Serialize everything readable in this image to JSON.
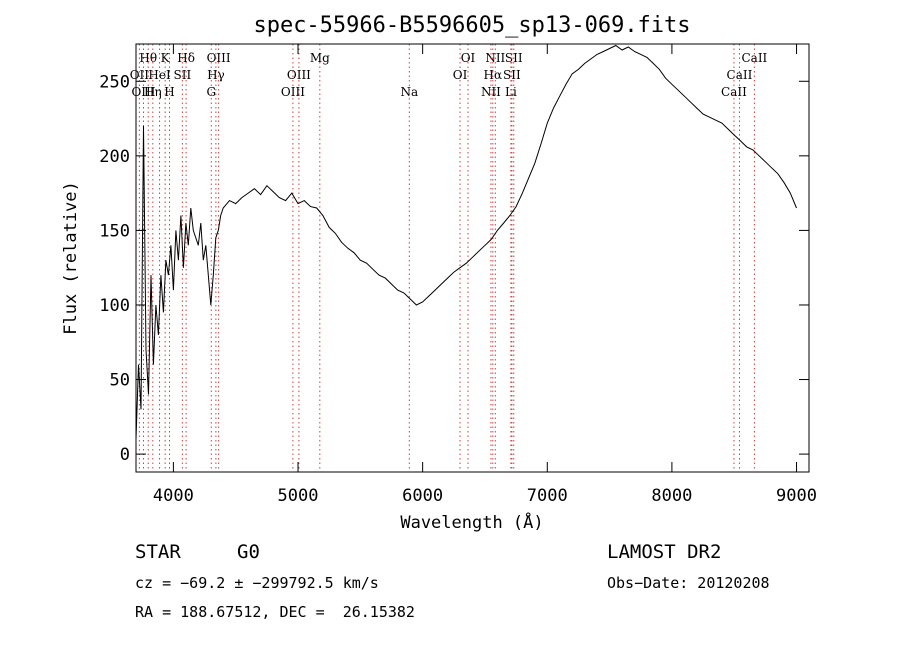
{
  "chart_data": {
    "type": "line",
    "title": "spec-55966-B5596605_sp13-069.fits",
    "xlabel": "Wavelength (Å)",
    "ylabel": "Flux (relative)",
    "xlim": [
      3700,
      9100
    ],
    "ylim": [
      -12,
      275
    ],
    "xticks": [
      4000,
      5000,
      6000,
      7000,
      8000,
      9000
    ],
    "yticks": [
      0,
      50,
      100,
      150,
      200,
      250
    ],
    "grid": false,
    "series": [
      {
        "x": [
          3700,
          3720,
          3740,
          3760,
          3780,
          3800,
          3820,
          3840,
          3860,
          3880,
          3900,
          3920,
          3940,
          3960,
          3980,
          4000,
          4020,
          4040,
          4060,
          4080,
          4100,
          4120,
          4140,
          4160,
          4180,
          4200,
          4220,
          4240,
          4260,
          4280,
          4300,
          4320,
          4340,
          4360,
          4380,
          4400,
          4450,
          4500,
          4550,
          4600,
          4650,
          4700,
          4750,
          4800,
          4850,
          4900,
          4950,
          5000,
          5050,
          5100,
          5150,
          5200,
          5250,
          5300,
          5350,
          5400,
          5450,
          5500,
          5550,
          5600,
          5650,
          5700,
          5750,
          5800,
          5850,
          5900,
          5950,
          6000,
          6050,
          6100,
          6150,
          6200,
          6250,
          6300,
          6350,
          6400,
          6450,
          6500,
          6550,
          6600,
          6650,
          6700,
          6750,
          6800,
          6850,
          6900,
          6950,
          7000,
          7050,
          7100,
          7150,
          7200,
          7250,
          7300,
          7350,
          7400,
          7450,
          7500,
          7550,
          7600,
          7650,
          7700,
          7750,
          7800,
          7850,
          7900,
          7950,
          8000,
          8050,
          8100,
          8150,
          8200,
          8250,
          8300,
          8350,
          8400,
          8450,
          8500,
          8550,
          8600,
          8650,
          8700,
          8750,
          8800,
          8850,
          8900,
          8950,
          9000
        ],
        "values": [
          10,
          60,
          30,
          220,
          70,
          40,
          120,
          60,
          100,
          80,
          120,
          95,
          130,
          120,
          140,
          110,
          150,
          130,
          160,
          125,
          155,
          140,
          165,
          150,
          145,
          140,
          155,
          130,
          140,
          120,
          100,
          120,
          145,
          150,
          160,
          165,
          170,
          168,
          172,
          175,
          178,
          174,
          180,
          176,
          172,
          170,
          175,
          168,
          170,
          166,
          165,
          160,
          152,
          148,
          142,
          138,
          135,
          130,
          128,
          124,
          120,
          118,
          114,
          110,
          108,
          104,
          100,
          102,
          106,
          110,
          114,
          118,
          122,
          125,
          128,
          132,
          136,
          140,
          144,
          150,
          155,
          160,
          166,
          175,
          185,
          195,
          208,
          222,
          232,
          240,
          248,
          255,
          258,
          262,
          265,
          268,
          270,
          272,
          274,
          271,
          273,
          270,
          268,
          266,
          262,
          258,
          252,
          248,
          244,
          240,
          236,
          232,
          228,
          226,
          224,
          222,
          218,
          214,
          210,
          206,
          204,
          200,
          196,
          192,
          188,
          182,
          175,
          165
        ]
      }
    ],
    "line_markers": [
      {
        "label": "Hθ",
        "x": 3798,
        "row": 1
      },
      {
        "label": "OII",
        "x": 3727,
        "row": 2
      },
      {
        "label": "OIII",
        "x": 3760,
        "row": 3
      },
      {
        "label": "K",
        "x": 3934,
        "row": 1
      },
      {
        "label": "HeI",
        "x": 3889,
        "row": 2
      },
      {
        "label": "Hη",
        "x": 3835,
        "row": 3
      },
      {
        "label": "Hδ",
        "x": 4102,
        "row": 1
      },
      {
        "label": "SII",
        "x": 4072,
        "row": 2
      },
      {
        "label": "H",
        "x": 3969,
        "row": 3
      },
      {
        "label": "OIII",
        "x": 4363,
        "row": 1
      },
      {
        "label": "Hγ",
        "x": 4341,
        "row": 2
      },
      {
        "label": "G",
        "x": 4304,
        "row": 3
      },
      {
        "label": "Mg",
        "x": 5175,
        "row": 1
      },
      {
        "label": "OIII",
        "x": 5007,
        "row": 2
      },
      {
        "label": "OIII",
        "x": 4959,
        "row": 3
      },
      {
        "label": "Na",
        "x": 5893,
        "row": 3
      },
      {
        "label": "OI",
        "x": 6364,
        "row": 1
      },
      {
        "label": "OI",
        "x": 6300,
        "row": 2
      },
      {
        "label": "NII",
        "x": 6583,
        "row": 1
      },
      {
        "label": "Hα",
        "x": 6563,
        "row": 2
      },
      {
        "label": "NII",
        "x": 6548,
        "row": 3
      },
      {
        "label": "SII",
        "x": 6731,
        "row": 1
      },
      {
        "label": "SII",
        "x": 6716,
        "row": 2
      },
      {
        "label": "Li",
        "x": 6708,
        "row": 3
      },
      {
        "label": "CaII",
        "x": 8662,
        "row": 1
      },
      {
        "label": "CaII",
        "x": 8542,
        "row": 2
      },
      {
        "label": "CaII",
        "x": 8498,
        "row": 3
      }
    ]
  },
  "info": {
    "object_class": "STAR",
    "subclass": "G0",
    "survey": "LAMOST DR2",
    "cz": "cz = −69.2 ± −299792.5 km/s",
    "obs_date": "Obs−Date: 20120208",
    "coords": "RA = 188.67512, DEC =  26.15382"
  }
}
